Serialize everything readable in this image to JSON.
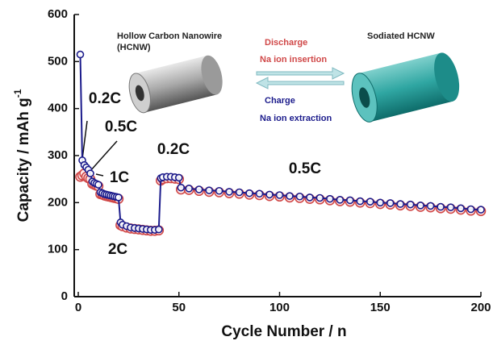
{
  "chart_data": {
    "type": "line",
    "xlabel": "Cycle Number / n",
    "ylabel": "Capacity / mAh g",
    "ylabel_superscript": "-1",
    "x": [
      1,
      2,
      3,
      4,
      5,
      6,
      7,
      8,
      9,
      10,
      11,
      12,
      13,
      14,
      15,
      16,
      17,
      18,
      19,
      20,
      21,
      22,
      24,
      26,
      28,
      30,
      32,
      34,
      36,
      38,
      40,
      41,
      42,
      44,
      46,
      48,
      50,
      51,
      55,
      60,
      65,
      70,
      75,
      80,
      85,
      90,
      95,
      100,
      105,
      110,
      115,
      120,
      125,
      130,
      135,
      140,
      145,
      150,
      155,
      160,
      165,
      170,
      175,
      180,
      185,
      190,
      195,
      200
    ],
    "series": [
      {
        "name": "Charge",
        "color": "#1c1c8c",
        "values": [
          515,
          290,
          280,
          275,
          270,
          262,
          245,
          242,
          240,
          238,
          222,
          220,
          218,
          217,
          216,
          215,
          214,
          213,
          212,
          211,
          158,
          153,
          150,
          147,
          146,
          145,
          144,
          143,
          142,
          142,
          143,
          252,
          254,
          255,
          255,
          254,
          253,
          232,
          230,
          228,
          226,
          225,
          223,
          222,
          220,
          219,
          217,
          216,
          214,
          213,
          211,
          210,
          208,
          206,
          205,
          203,
          202,
          200,
          199,
          197,
          196,
          194,
          193,
          191,
          190,
          188,
          186,
          185
        ]
      },
      {
        "name": "Discharge",
        "color": "#d04848",
        "values": [
          255,
          258,
          262,
          255,
          252,
          250,
          240,
          238,
          236,
          235,
          218,
          217,
          215,
          214,
          213,
          212,
          211,
          210,
          209,
          208,
          152,
          150,
          147,
          145,
          144,
          143,
          142,
          141,
          140,
          140,
          141,
          247,
          250,
          252,
          252,
          251,
          250,
          228,
          227,
          225,
          223,
          222,
          220,
          219,
          217,
          216,
          214,
          213,
          211,
          210,
          208,
          207,
          205,
          203,
          202,
          200,
          199,
          197,
          196,
          194,
          193,
          191,
          190,
          188,
          187,
          185,
          183,
          182
        ]
      }
    ],
    "xlim": [
      -2,
      200
    ],
    "ylim": [
      0,
      600
    ],
    "xticks": [
      0,
      50,
      100,
      150,
      200
    ],
    "yticks": [
      0,
      100,
      200,
      300,
      400,
      500,
      600
    ],
    "rate_labels": [
      "0.2C",
      "0.5C",
      "1C",
      "2C",
      "0.2C",
      "0.5C"
    ],
    "inset": {
      "left_label": [
        "Hollow Carbon Nanowire",
        "(HCNW)"
      ],
      "right_label": "Sodiated HCNW",
      "discharge": "Discharge",
      "insertion": "Na ion insertion",
      "charge": "Charge",
      "extraction": "Na ion extraction"
    }
  }
}
